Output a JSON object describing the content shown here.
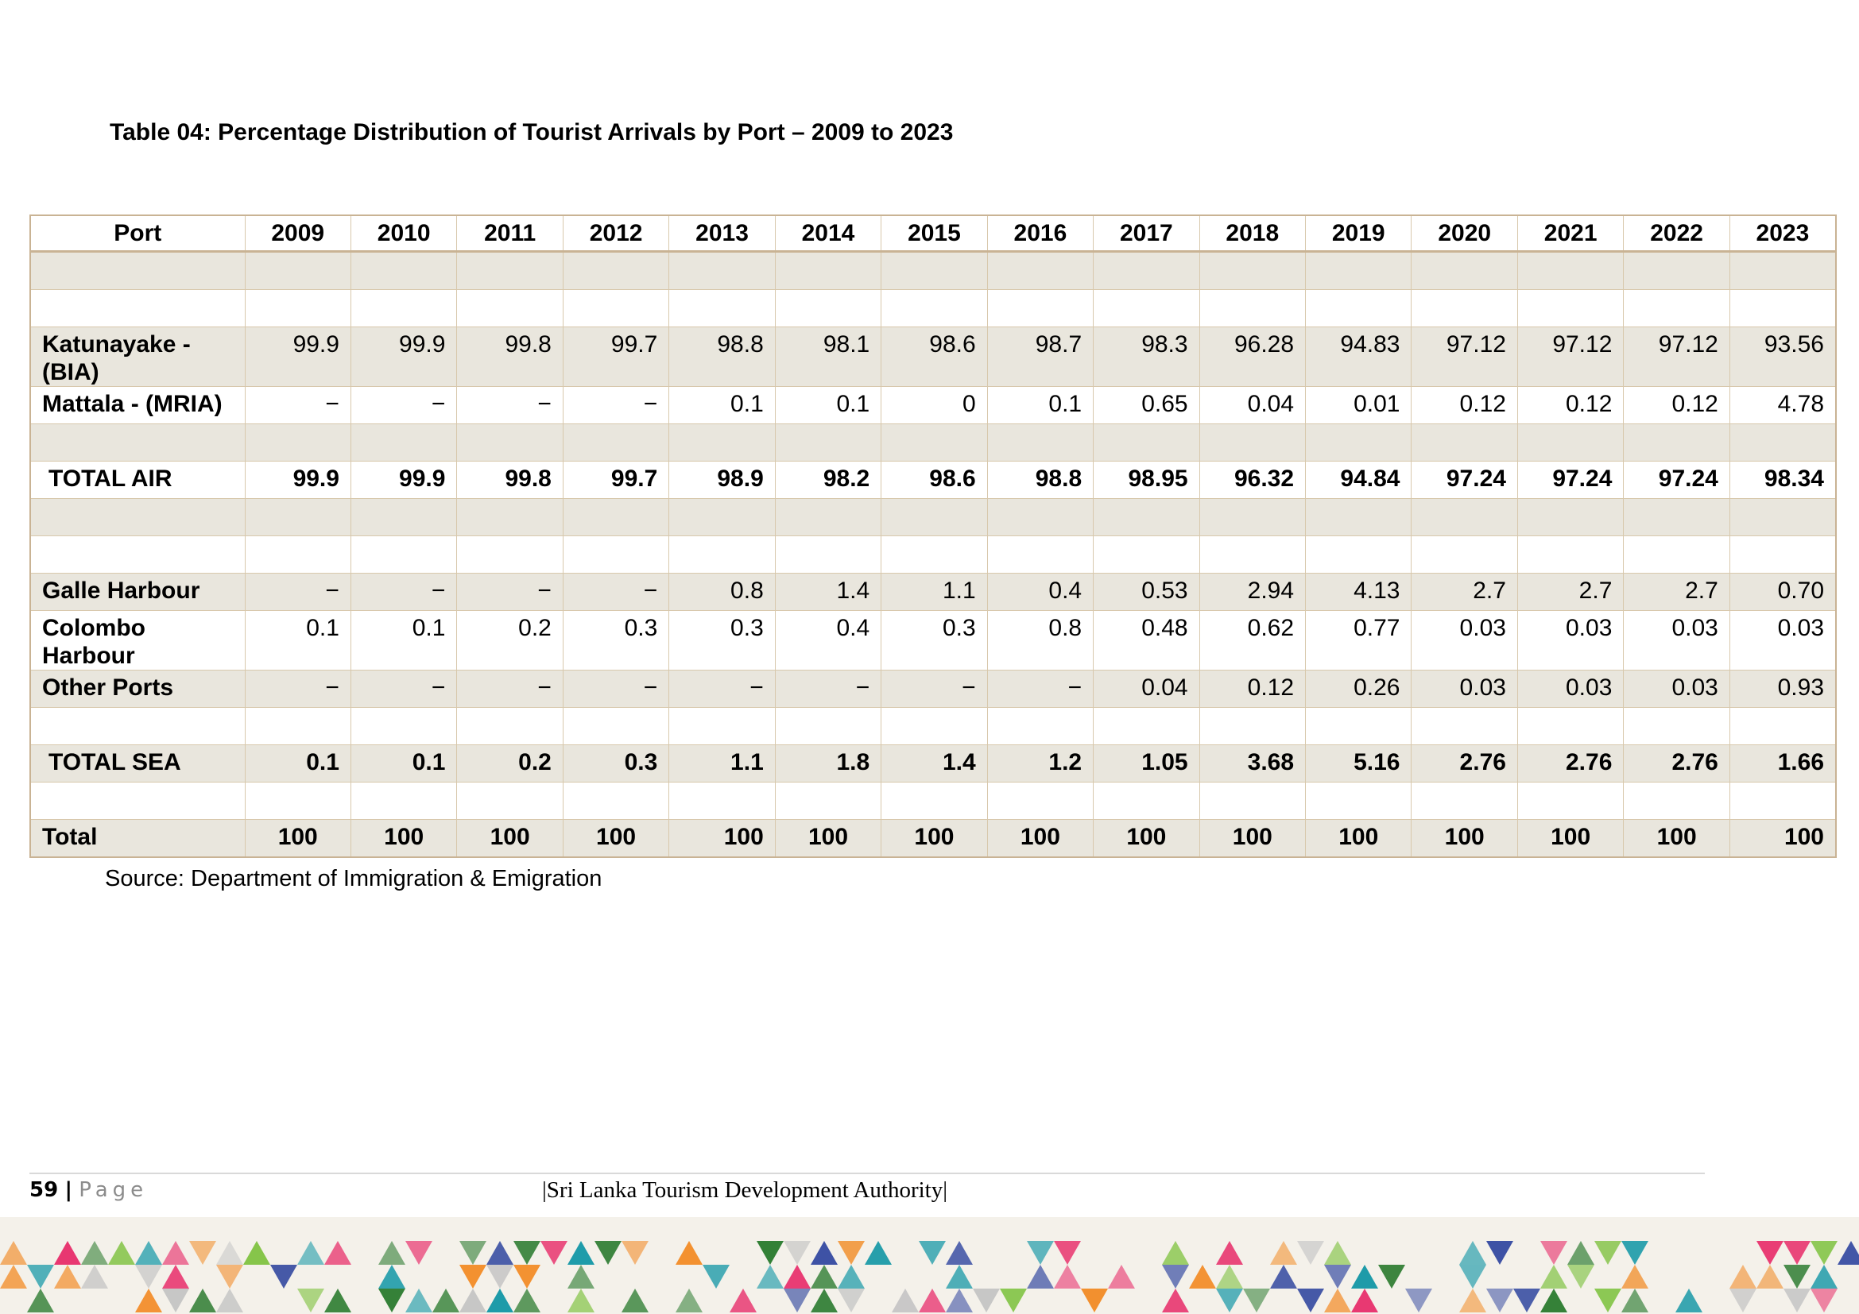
{
  "title": "Table 04: Percentage Distribution of Tourist Arrivals by Port – 2009 to 2023",
  "table": {
    "header": [
      "Port",
      "2009",
      "2010",
      "2011",
      "2012",
      "2013",
      "2014",
      "2015",
      "2016",
      "2017",
      "2018",
      "2019",
      "2020",
      "2021",
      "2022",
      "2023"
    ],
    "rows": [
      {
        "port": "",
        "values": [
          "",
          "",
          "",
          "",
          "",
          "",
          "",
          "",
          "",
          "",
          "",
          "",
          "",
          "",
          ""
        ]
      },
      {
        "port": "",
        "values": [
          "",
          "",
          "",
          "",
          "",
          "",
          "",
          "",
          "",
          "",
          "",
          "",
          "",
          "",
          ""
        ]
      },
      {
        "port": "Katunayake - (BIA)",
        "values": [
          "99.9",
          "99.9",
          "99.8",
          "99.7",
          "98.8",
          "98.1",
          "98.6",
          "98.7",
          "98.3",
          "96.28",
          "94.83",
          "97.12",
          "97.12",
          "97.12",
          "93.56"
        ]
      },
      {
        "port": "Mattala - (MRIA)",
        "values": [
          "−",
          "−",
          "−",
          "−",
          "0.1",
          "0.1",
          "0",
          "0.1",
          "0.65",
          "0.04",
          "0.01",
          "0.12",
          "0.12",
          "0.12",
          "4.78"
        ]
      },
      {
        "port": "",
        "values": [
          "",
          "",
          "",
          "",
          "",
          "",
          "",
          "",
          "",
          "",
          "",
          "",
          "",
          "",
          ""
        ]
      },
      {
        "port": "TOTAL AIR",
        "values": [
          "99.9",
          "99.9",
          "99.8",
          "99.7",
          "98.9",
          "98.2",
          "98.6",
          "98.8",
          "98.95",
          "96.32",
          "94.84",
          "97.24",
          "97.24",
          "97.24",
          "98.34"
        ]
      },
      {
        "port": "",
        "values": [
          "",
          "",
          "",
          "",
          "",
          "",
          "",
          "",
          "",
          "",
          "",
          "",
          "",
          "",
          ""
        ]
      },
      {
        "port": "",
        "values": [
          "",
          "",
          "",
          "",
          "",
          "",
          "",
          "",
          "",
          "",
          "",
          "",
          "",
          "",
          ""
        ]
      },
      {
        "port": "Galle Harbour",
        "values": [
          "−",
          "−",
          "−",
          "−",
          "0.8",
          "1.4",
          "1.1",
          "0.4",
          "0.53",
          "2.94",
          "4.13",
          "2.7",
          "2.7",
          "2.7",
          "0.70"
        ]
      },
      {
        "port": "Colombo Harbour",
        "values": [
          "0.1",
          "0.1",
          "0.2",
          "0.3",
          "0.3",
          "0.4",
          "0.3",
          "0.8",
          "0.48",
          "0.62",
          "0.77",
          "0.03",
          "0.03",
          "0.03",
          "0.03"
        ]
      },
      {
        "port": "Other Ports",
        "values": [
          "−",
          "−",
          "−",
          "−",
          "−",
          "−",
          "−",
          "−",
          "0.04",
          "0.12",
          "0.26",
          "0.03",
          "0.03",
          "0.03",
          "0.93"
        ]
      },
      {
        "port": "",
        "values": [
          "",
          "",
          "",
          "",
          "",
          "",
          "",
          "",
          "",
          "",
          "",
          "",
          "",
          "",
          ""
        ]
      },
      {
        "port": "TOTAL SEA",
        "values": [
          "0.1",
          "0.1",
          "0.2",
          "0.3",
          "1.1",
          "1.8",
          "1.4",
          "1.2",
          "1.05",
          "3.68",
          "5.16",
          "2.76",
          "2.76",
          "2.76",
          "1.66"
        ]
      },
      {
        "port": "",
        "values": [
          "",
          "",
          "",
          "",
          "",
          "",
          "",
          "",
          "",
          "",
          "",
          "",
          "",
          "",
          ""
        ]
      },
      {
        "port": "Total",
        "values": [
          "100",
          "100",
          "100",
          "100",
          "100",
          "100",
          "100",
          "100",
          "100",
          "100",
          "100",
          "100",
          "100",
          "100",
          "100"
        ]
      }
    ]
  },
  "source": "Source: Department of Immigration & Emigration",
  "footer": {
    "page_number": "59",
    "separator": "|",
    "page_word": "Page",
    "organization": "|Sri Lanka Tourism Development Authority|"
  },
  "colors": {
    "table_border": "#c9b394",
    "row_shade": "#e9e6dd",
    "banner_palette": [
      "#1b9aa8",
      "#e8356f",
      "#2e7d32",
      "#f28c28",
      "#3a4fa3",
      "#7fc241",
      "#c4c4c4"
    ]
  }
}
